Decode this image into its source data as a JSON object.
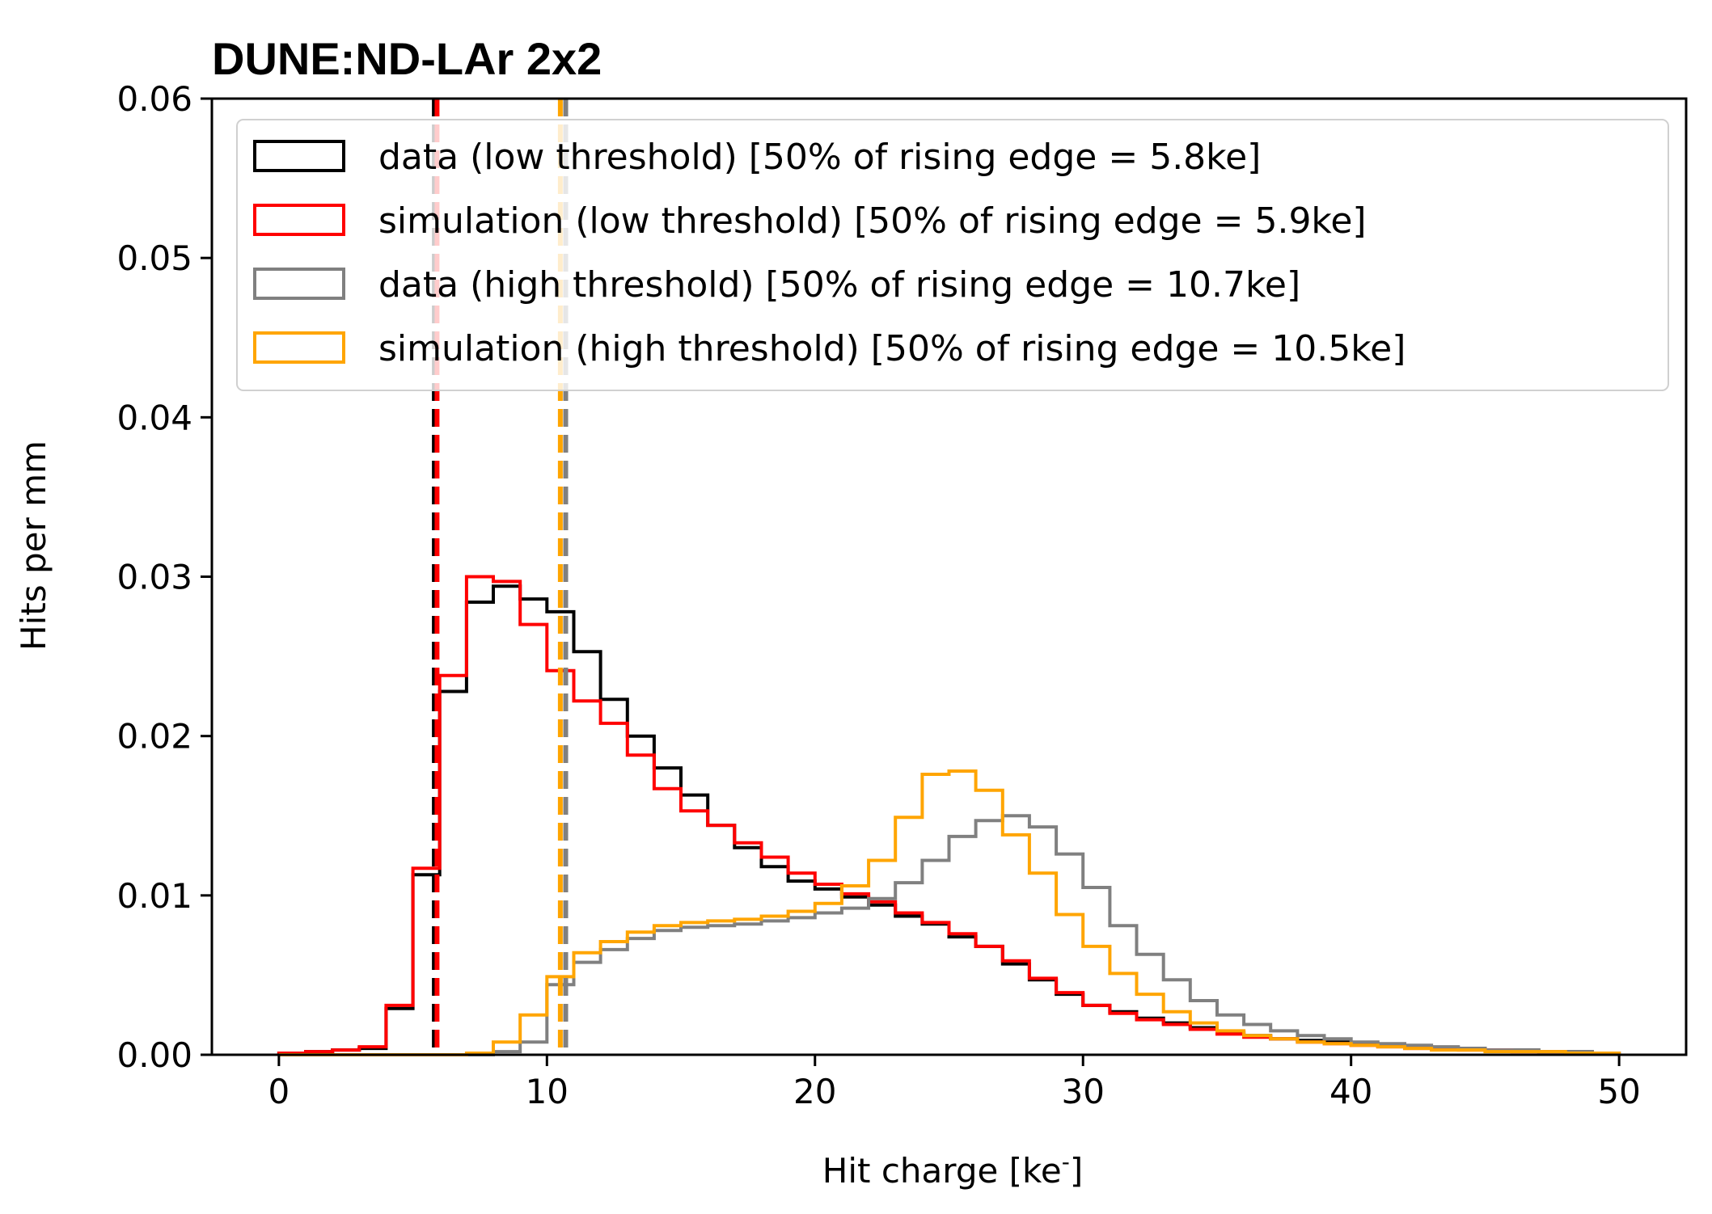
{
  "chart_data": {
    "type": "histogram",
    "title": "DUNE:ND-LAr 2x2",
    "xlabel": "Hit charge [ke",
    "xlabel_sup": "-",
    "xlabel_end": "]",
    "ylabel": "Hits per mm",
    "xlim": [
      -2.5,
      52.5
    ],
    "ylim": [
      0,
      0.06
    ],
    "xticks": [
      0,
      10,
      20,
      30,
      40,
      50
    ],
    "xtick_labels": [
      "0",
      "10",
      "20",
      "30",
      "40",
      "50"
    ],
    "yticks": [
      0,
      0.01,
      0.02,
      0.03,
      0.04,
      0.05,
      0.06
    ],
    "ytick_labels": [
      "0.00",
      "0.01",
      "0.02",
      "0.03",
      "0.04",
      "0.05",
      "0.06"
    ],
    "bin_edges": [
      0,
      1,
      2,
      3,
      4,
      5,
      6,
      7,
      8,
      9,
      10,
      11,
      12,
      13,
      14,
      15,
      16,
      17,
      18,
      19,
      20,
      21,
      22,
      23,
      24,
      25,
      26,
      27,
      28,
      29,
      30,
      31,
      32,
      33,
      34,
      35,
      36,
      37,
      38,
      39,
      40,
      41,
      42,
      43,
      44,
      45,
      46,
      47,
      48,
      49,
      50
    ],
    "legend_position": "upper-right",
    "series": [
      {
        "name": "data (low threshold) [50% of rising edge = 5.8ke]",
        "color": "#000000",
        "threshold": 5.8,
        "values": [
          0.0001,
          0.0002,
          0.0003,
          0.0004,
          0.0029,
          0.0113,
          0.0228,
          0.0284,
          0.0294,
          0.0286,
          0.0278,
          0.0253,
          0.0223,
          0.02,
          0.018,
          0.0163,
          0.0144,
          0.013,
          0.0118,
          0.0109,
          0.0104,
          0.0099,
          0.0094,
          0.0087,
          0.0082,
          0.0074,
          0.0068,
          0.0057,
          0.0047,
          0.0038,
          0.0031,
          0.0027,
          0.0023,
          0.002,
          0.0017,
          0.0014,
          0.0012,
          0.001,
          0.0009,
          0.0008,
          0.0007,
          0.0006,
          0.0005,
          0.0004,
          0.0004,
          0.0003,
          0.0003,
          0.0002,
          0.0002,
          0.0001
        ]
      },
      {
        "name": "simulation (low threshold) [50% of rising edge = 5.9ke]",
        "color": "#ff0000",
        "threshold": 5.9,
        "values": [
          0.0001,
          0.0002,
          0.0003,
          0.0005,
          0.0031,
          0.0117,
          0.0238,
          0.03,
          0.0297,
          0.027,
          0.0241,
          0.0222,
          0.0208,
          0.0188,
          0.0167,
          0.0153,
          0.0144,
          0.0133,
          0.0124,
          0.0114,
          0.0107,
          0.0101,
          0.0096,
          0.0089,
          0.0083,
          0.0076,
          0.0068,
          0.0059,
          0.0048,
          0.0039,
          0.0031,
          0.0026,
          0.0022,
          0.0019,
          0.0016,
          0.0013,
          0.0011,
          0.001,
          0.0008,
          0.0007,
          0.0006,
          0.0005,
          0.0004,
          0.0004,
          0.0003,
          0.0003,
          0.0002,
          0.0002,
          0.0001,
          0.0001
        ]
      },
      {
        "name": "data (high threshold) [50% of rising edge = 10.7ke]",
        "color": "#808080",
        "threshold": 10.7,
        "values": [
          0,
          0,
          0,
          0,
          0,
          0,
          0,
          0,
          0.0002,
          0.0008,
          0.0044,
          0.0058,
          0.0066,
          0.0073,
          0.0078,
          0.008,
          0.0081,
          0.0082,
          0.0084,
          0.0086,
          0.0089,
          0.0092,
          0.0098,
          0.0108,
          0.0122,
          0.0137,
          0.0147,
          0.015,
          0.0143,
          0.0126,
          0.0105,
          0.0081,
          0.0063,
          0.0047,
          0.0034,
          0.0025,
          0.0019,
          0.0015,
          0.0012,
          0.001,
          0.0008,
          0.0007,
          0.0006,
          0.0005,
          0.0004,
          0.0003,
          0.0003,
          0.0002,
          0.0002,
          0.0001
        ]
      },
      {
        "name": "simulation (high threshold) [50% of rising edge = 10.5ke]",
        "color": "#ffa500",
        "threshold": 10.5,
        "values": [
          0,
          0,
          0,
          0,
          0,
          0,
          0,
          0.0001,
          0.0008,
          0.0025,
          0.0049,
          0.0064,
          0.0071,
          0.0077,
          0.0081,
          0.0083,
          0.0084,
          0.0085,
          0.0087,
          0.009,
          0.0095,
          0.0106,
          0.0122,
          0.0149,
          0.0176,
          0.0178,
          0.0166,
          0.0138,
          0.0114,
          0.0088,
          0.0068,
          0.0051,
          0.0038,
          0.0027,
          0.002,
          0.0015,
          0.0012,
          0.001,
          0.0008,
          0.0007,
          0.0006,
          0.0005,
          0.0004,
          0.0003,
          0.0003,
          0.0002,
          0.0002,
          0.0002,
          0.0001,
          0.0001
        ]
      }
    ]
  }
}
